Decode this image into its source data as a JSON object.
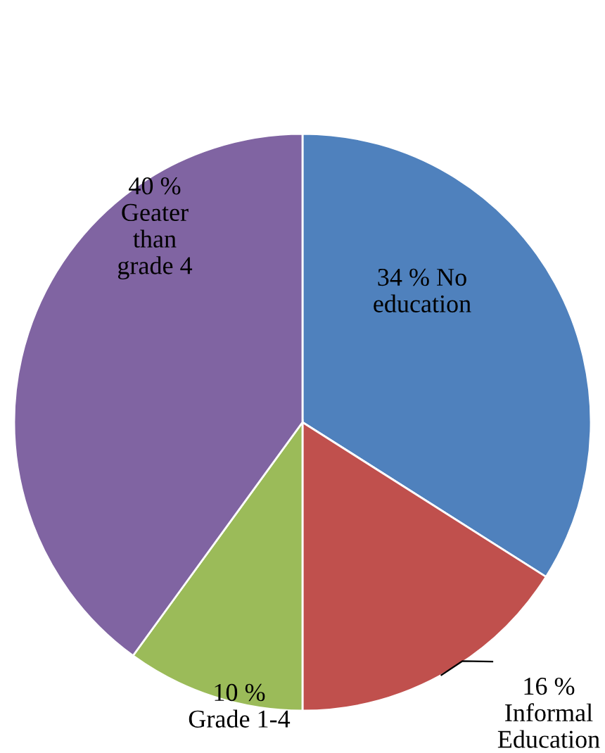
{
  "chart_data": {
    "type": "pie",
    "categories": [
      "No\neducation",
      "Informal\nEducation",
      "Grade 1-4",
      "Geater\nthan\ngrade 4"
    ],
    "values": [
      34,
      16,
      10,
      40
    ],
    "value_labels": [
      "34 %",
      "16 %",
      "10 %",
      "40 %"
    ],
    "colors": [
      "#4f81bd",
      "#c0504d",
      "#9bbb59",
      "#8064a2"
    ],
    "legend": false
  }
}
